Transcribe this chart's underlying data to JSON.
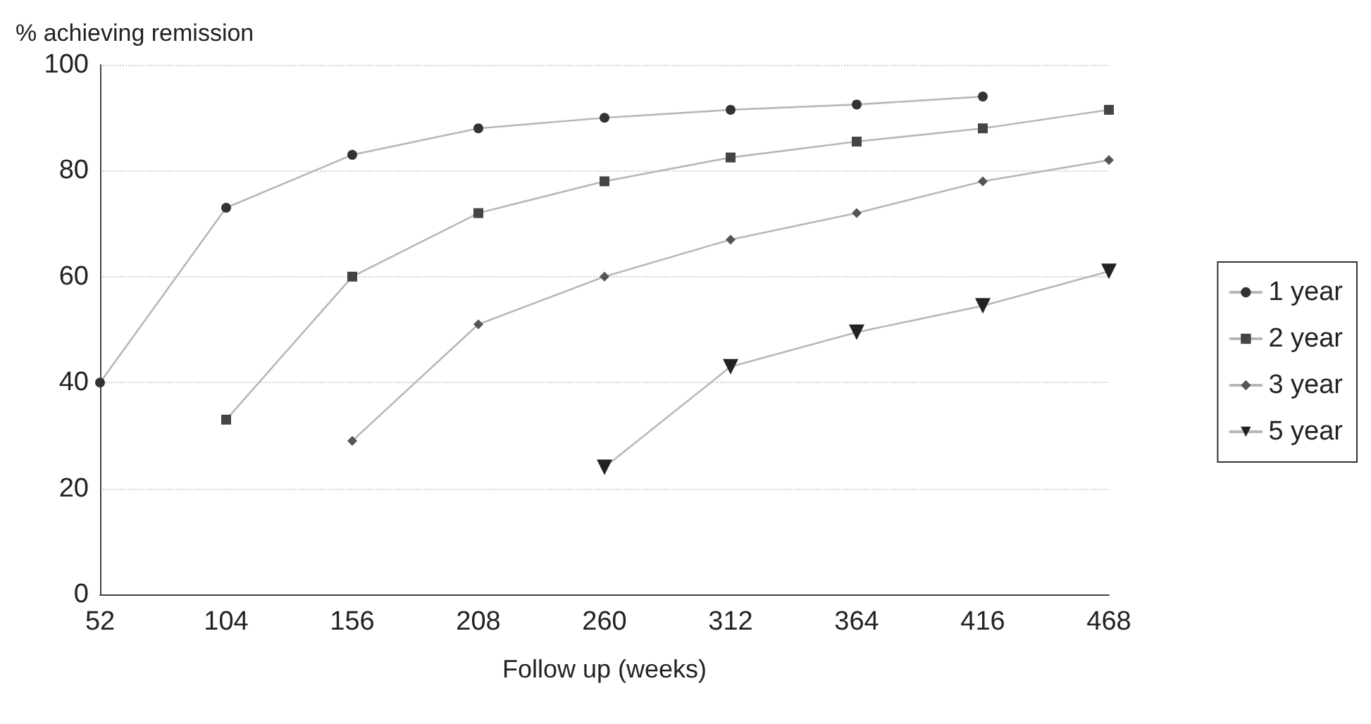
{
  "chart_data": {
    "type": "line",
    "xlabel": "Follow up (weeks)",
    "ylabel": "% achieving remission",
    "x": [
      52,
      104,
      156,
      208,
      260,
      312,
      364,
      416,
      468
    ],
    "series": [
      {
        "name": "1 year",
        "color": "#333333",
        "marker": "circle",
        "values": [
          40,
          73,
          83,
          88,
          90,
          91.5,
          92.5,
          94,
          null
        ]
      },
      {
        "name": "2 year",
        "color": "#444444",
        "marker": "square",
        "values": [
          null,
          33,
          60,
          72,
          78,
          82.5,
          85.5,
          88,
          91.5
        ]
      },
      {
        "name": "3 year",
        "color": "#555555",
        "marker": "diamond",
        "values": [
          null,
          null,
          29,
          51,
          60,
          67,
          72,
          78,
          82
        ]
      },
      {
        "name": "5 year",
        "color": "#222222",
        "marker": "triangle",
        "values": [
          null,
          null,
          null,
          null,
          24,
          43,
          49.5,
          54.5,
          61
        ]
      }
    ],
    "xlim": [
      52,
      468
    ],
    "xticks": [
      52,
      104,
      156,
      208,
      260,
      312,
      364,
      416,
      468
    ],
    "ylim": [
      0,
      100
    ],
    "yticks": [
      0,
      20,
      40,
      60,
      80,
      100
    ],
    "grid": "y",
    "legend": "right",
    "line_style": "solid"
  }
}
